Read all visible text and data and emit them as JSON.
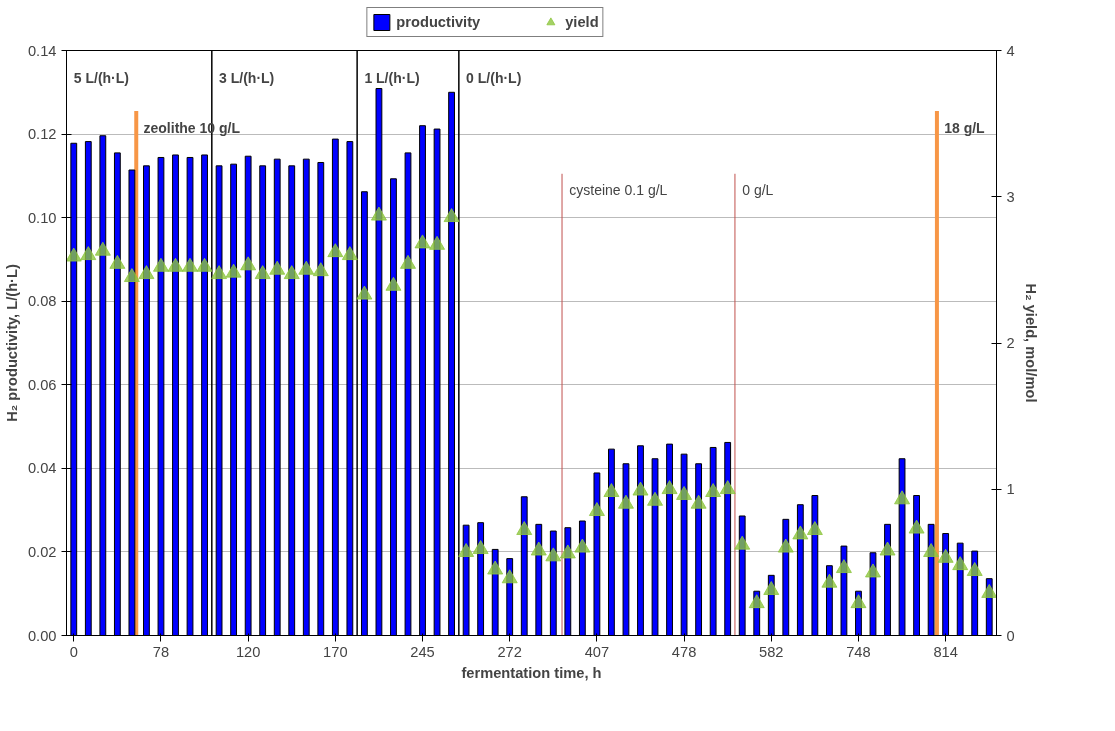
{
  "chart_data": {
    "type": "bar",
    "xlabel": "fermentation time, h",
    "ylabel": "H₂ productivity, L/(h·L)",
    "y2label": "H₂ yield, mol/mol",
    "categories": [
      "0",
      null,
      null,
      null,
      null,
      null,
      "78",
      null,
      null,
      null,
      null,
      null,
      "120",
      null,
      null,
      null,
      null,
      null,
      "170",
      null,
      null,
      null,
      null,
      null,
      "245",
      null,
      null,
      null,
      null,
      null,
      "272",
      null,
      null,
      null,
      null,
      null,
      "407",
      null,
      null,
      null,
      null,
      null,
      "478",
      null,
      null,
      null,
      null,
      null,
      "582",
      null,
      null,
      null,
      null,
      null,
      "748",
      null,
      null,
      null,
      null,
      null,
      "814",
      null,
      null,
      null
    ],
    "series": [
      {
        "name": "productivity",
        "color": "#0000ff",
        "values": [
          0.1178,
          0.1182,
          0.1196,
          0.1155,
          0.1114,
          0.1124,
          0.1144,
          0.115,
          0.1144,
          0.115,
          0.1124,
          0.1128,
          0.1147,
          0.1124,
          0.114,
          0.1124,
          0.114,
          0.1132,
          0.1188,
          0.1182,
          0.1062,
          0.1309,
          0.1093,
          0.1155,
          0.122,
          0.1212,
          0.13,
          0.0264,
          0.027,
          0.0206,
          0.0184,
          0.0332,
          0.0266,
          0.025,
          0.0258,
          0.0274,
          0.0389,
          0.0446,
          0.0411,
          0.0454,
          0.0423,
          0.0458,
          0.0434,
          0.0411,
          0.045,
          0.0462,
          0.0286,
          0.0106,
          0.0144,
          0.0278,
          0.0313,
          0.0335,
          0.0167,
          0.0214,
          0.0106,
          0.0198,
          0.0266,
          0.0423,
          0.0335,
          0.0266,
          0.0244,
          0.0221,
          0.0202,
          0.0136
        ]
      },
      {
        "name": "yield",
        "type": "scatter",
        "axis": "y2",
        "marker": "triangle",
        "color": "#8dc63f",
        "values": [
          2.59,
          2.6,
          2.63,
          2.54,
          2.45,
          2.47,
          2.52,
          2.52,
          2.52,
          2.52,
          2.47,
          2.48,
          2.53,
          2.47,
          2.5,
          2.47,
          2.5,
          2.49,
          2.62,
          2.6,
          2.33,
          2.87,
          2.39,
          2.54,
          2.68,
          2.67,
          2.86,
          0.57,
          0.59,
          0.45,
          0.39,
          0.72,
          0.58,
          0.54,
          0.56,
          0.6,
          0.85,
          0.98,
          0.9,
          0.99,
          0.92,
          1.0,
          0.96,
          0.9,
          0.98,
          1.0,
          0.62,
          0.22,
          0.31,
          0.6,
          0.69,
          0.72,
          0.36,
          0.46,
          0.22,
          0.43,
          0.58,
          0.93,
          0.73,
          0.57,
          0.53,
          0.48,
          0.44,
          0.29
        ]
      }
    ],
    "ylim": [
      0,
      0.14
    ],
    "yticks": [
      {
        "value": 0,
        "label": "0.00"
      },
      {
        "value": 0.02,
        "label": "0.02"
      },
      {
        "value": 0.04,
        "label": "0.04"
      },
      {
        "value": 0.06,
        "label": "0.06"
      },
      {
        "value": 0.08,
        "label": "0.08"
      },
      {
        "value": 0.1,
        "label": "0.10"
      },
      {
        "value": 0.12,
        "label": "0.12"
      },
      {
        "value": 0.14,
        "label": "0.14"
      }
    ],
    "y2lim": [
      0,
      4
    ],
    "y2ticks": [
      0,
      1,
      2,
      3,
      4
    ],
    "annotations": [
      "5 L/(h·L)",
      "3 L/(h·L)",
      "1 L/(h·L)",
      "0 L/(h·L)",
      "zeolithe 10 g/L",
      "cysteine 0.1 g/L",
      "0 g/L",
      "18 g/L"
    ],
    "grid": "y",
    "legend": "top"
  }
}
